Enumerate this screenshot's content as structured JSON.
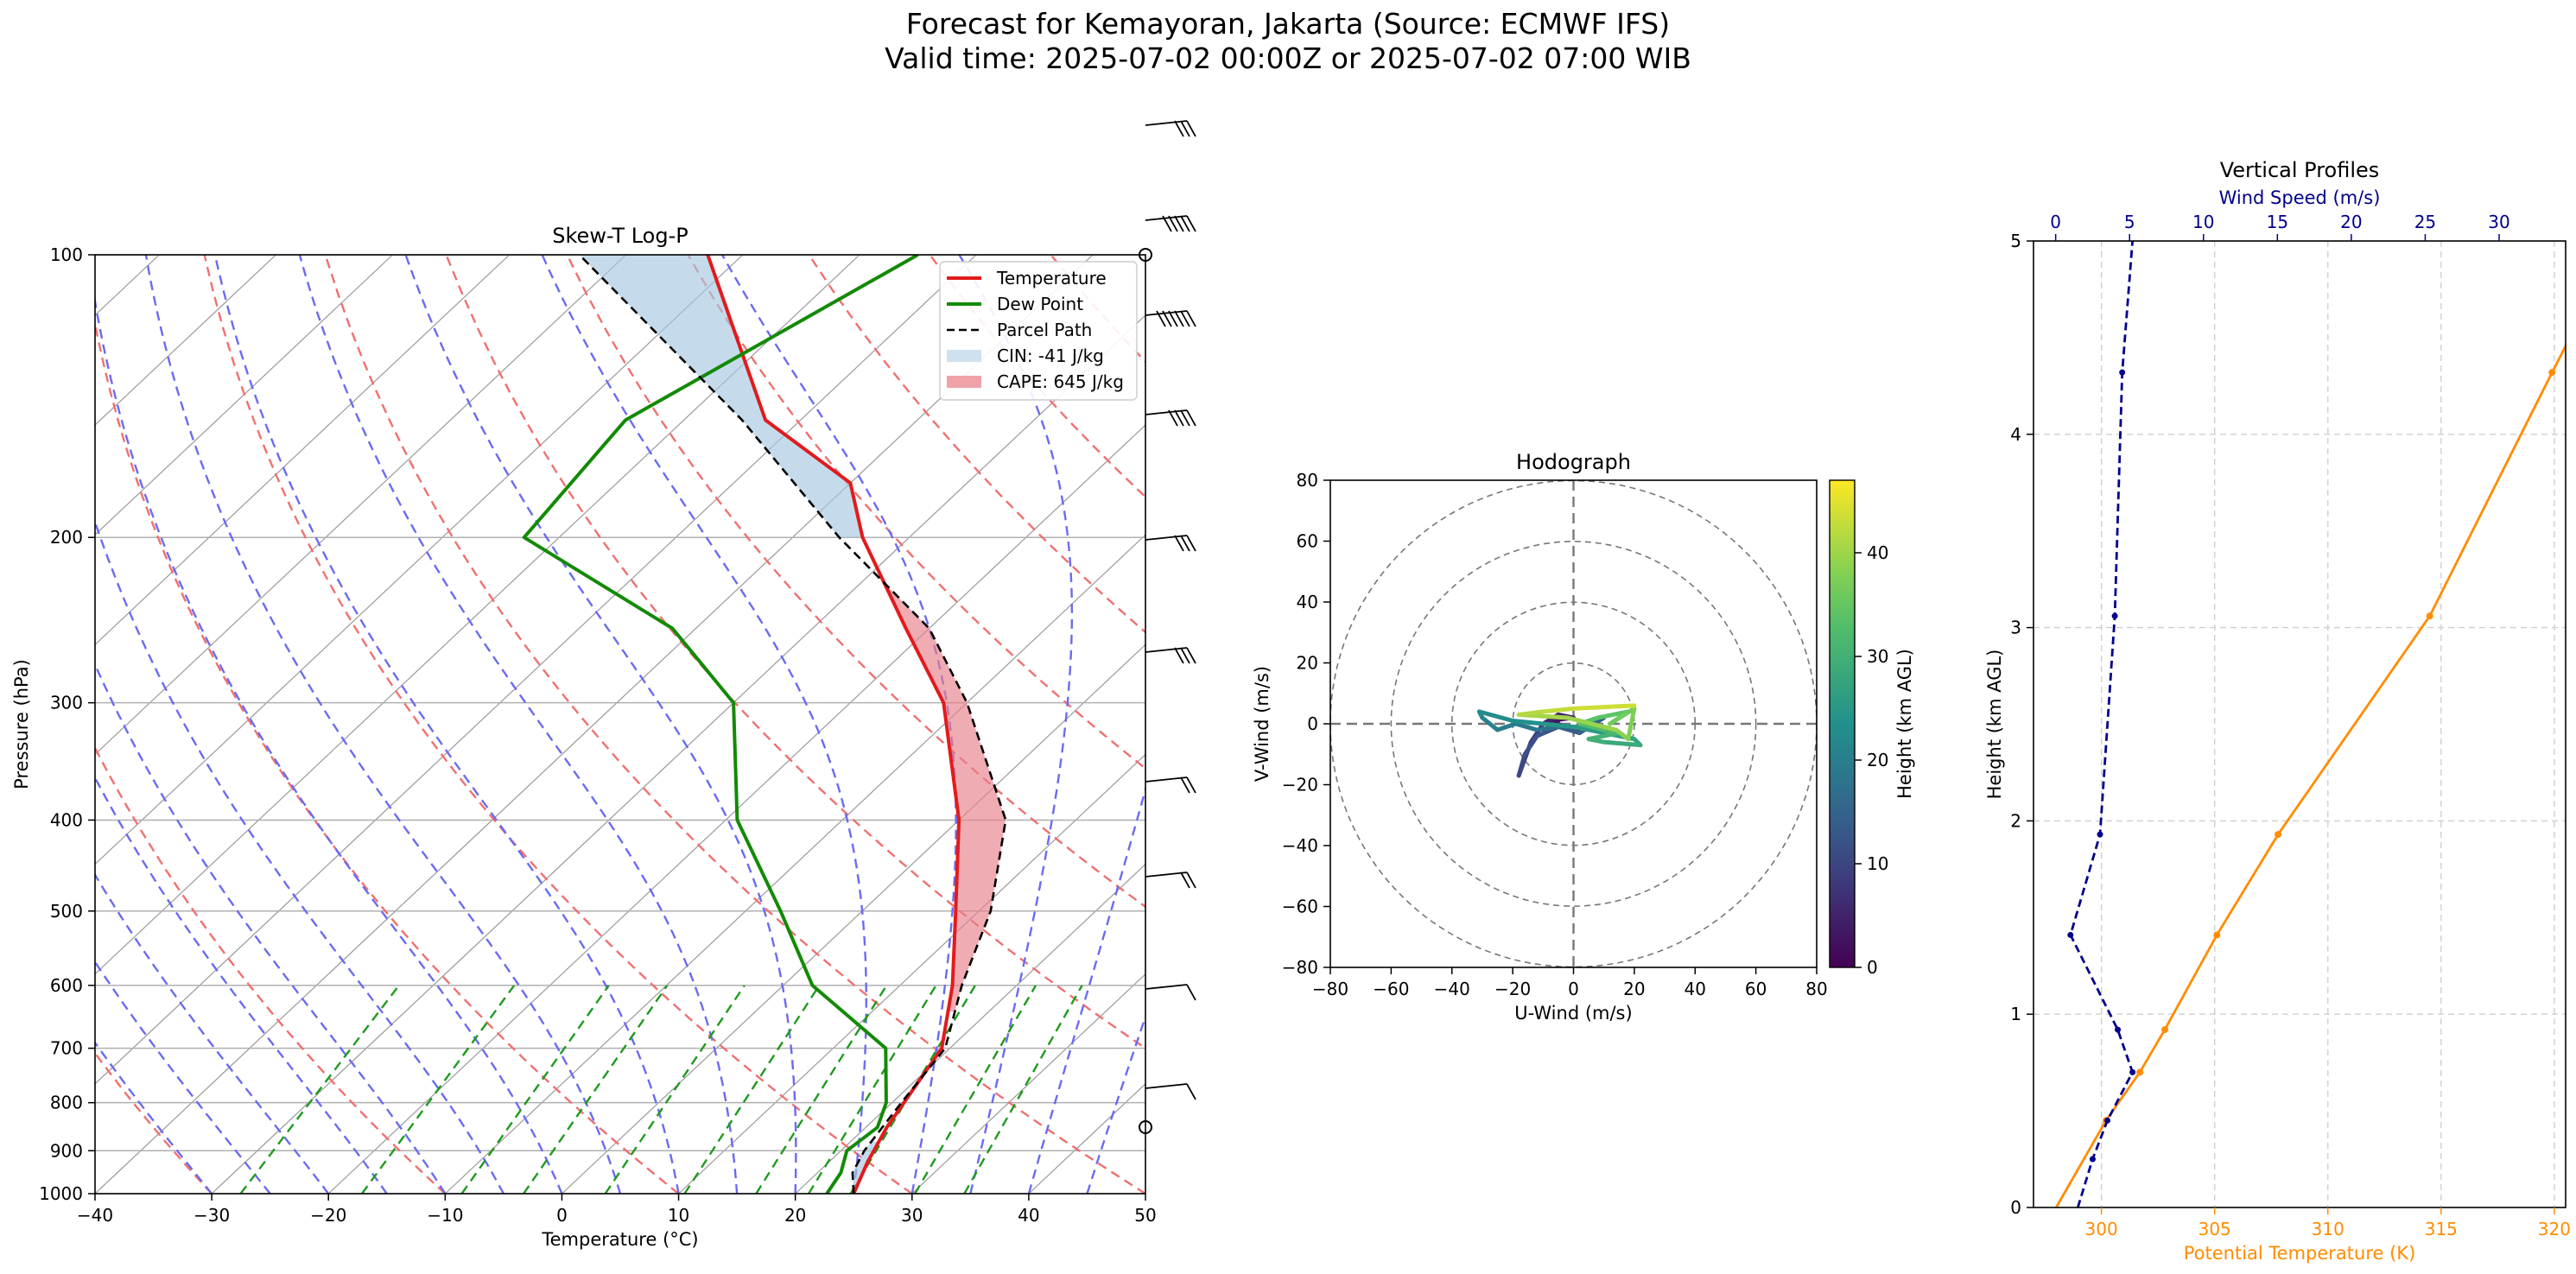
{
  "suptitle": {
    "line1": "Forecast for Kemayoran, Jakarta (Source: ECMWF IFS)",
    "line2": "Valid time: 2025-07-02 00:00Z or 2025-07-02 07:00 WIB"
  },
  "chart_data": [
    {
      "type": "line",
      "title": "Skew-T Log-P",
      "xlabel": "Temperature (°C)",
      "ylabel": "Pressure (hPa)",
      "xlim": [
        -40,
        50
      ],
      "ylim": [
        1000,
        100
      ],
      "log_y": true,
      "x_ticks": [
        -40,
        -30,
        -20,
        -10,
        0,
        10,
        20,
        30,
        40,
        50
      ],
      "y_ticks": [
        100,
        200,
        300,
        400,
        500,
        600,
        700,
        800,
        900,
        1000
      ],
      "legend": "top-right",
      "series": [
        {
          "name": "Temperature",
          "color": "#e31a1c",
          "points": [
            [
              1000,
              25
            ],
            [
              925,
              23.3
            ],
            [
              850,
              21.8
            ],
            [
              700,
              19.3
            ],
            [
              600,
              14.5
            ],
            [
              500,
              8
            ],
            [
              400,
              0
            ],
            [
              300,
              -12
            ],
            [
              250,
              -22
            ],
            [
              200,
              -34
            ],
            [
              175,
              -40
            ],
            [
              150,
              -53
            ],
            [
              100,
              -73
            ]
          ]
        },
        {
          "name": "Dew Point",
          "color": "#138a07",
          "points": [
            [
              1000,
              22.7
            ],
            [
              950,
              22
            ],
            [
              900,
              20.5
            ],
            [
              850,
              21
            ],
            [
              800,
              19.5
            ],
            [
              700,
              14.5
            ],
            [
              600,
              2.5
            ],
            [
              500,
              -7
            ],
            [
              400,
              -19
            ],
            [
              300,
              -30
            ],
            [
              250,
              -42
            ],
            [
              200,
              -63
            ],
            [
              150,
              -65
            ],
            [
              100,
              -55
            ]
          ]
        },
        {
          "name": "Parcel Path",
          "color": "#000000",
          "dash": true,
          "points": [
            [
              1000,
              25
            ],
            [
              950,
              23
            ],
            [
              900,
              22
            ],
            [
              800,
              20.8
            ],
            [
              700,
              19.6
            ],
            [
              600,
              15.3
            ],
            [
              500,
              11
            ],
            [
              400,
              4
            ],
            [
              300,
              -10
            ],
            [
              250,
              -20
            ],
            [
              200,
              -36
            ],
            [
              150,
              -55
            ],
            [
              100,
              -84
            ]
          ]
        }
      ],
      "shaded": [
        {
          "name": "CIN: -41 J/kg",
          "color": "#a6c8e2"
        },
        {
          "name": "CAPE: 645 J/kg",
          "color": "#e8808a"
        }
      ]
    },
    {
      "type": "line",
      "title": "Hodograph",
      "xlabel": "U-Wind (m/s)",
      "ylabel": "V-Wind (m/s)",
      "xlim": [
        -80,
        80
      ],
      "ylim": [
        -80,
        80
      ],
      "ticks": [
        -80,
        -60,
        -40,
        -20,
        0,
        20,
        40,
        60,
        80
      ],
      "colorbar": {
        "label": "Height (km AGL)",
        "ticks": [
          0,
          10,
          20,
          30,
          40
        ],
        "range": [
          0,
          47
        ]
      },
      "points": [
        [
          2,
          -2,
          0
        ],
        [
          -6,
          0,
          1
        ],
        [
          -4,
          2,
          2
        ],
        [
          -8,
          1,
          3
        ],
        [
          0,
          2,
          4
        ],
        [
          -5,
          3,
          5
        ],
        [
          -10,
          0,
          6
        ],
        [
          -12,
          -3,
          8
        ],
        [
          -14,
          -6,
          9
        ],
        [
          -18,
          -17,
          10
        ],
        [
          -16,
          -10,
          11
        ],
        [
          -12,
          -4,
          12
        ],
        [
          -5,
          -1,
          13
        ],
        [
          2,
          -3,
          14
        ],
        [
          10,
          2,
          15
        ],
        [
          3,
          -1,
          16
        ],
        [
          -5,
          -1,
          17
        ],
        [
          -12,
          -2,
          18
        ],
        [
          -19,
          0,
          19
        ],
        [
          -25,
          -2,
          20
        ],
        [
          -30,
          2,
          21
        ],
        [
          -31,
          4,
          22
        ],
        [
          -20,
          1,
          23
        ],
        [
          -10,
          0,
          24
        ],
        [
          0,
          -1,
          25
        ],
        [
          10,
          -3,
          26
        ],
        [
          20,
          -5,
          27
        ],
        [
          22,
          -7,
          28
        ],
        [
          10,
          -6,
          29
        ],
        [
          5,
          -5,
          30
        ],
        [
          15,
          -3,
          31
        ],
        [
          10,
          -2,
          32
        ],
        [
          2,
          0,
          33
        ],
        [
          8,
          2,
          34
        ],
        [
          18,
          4,
          35
        ],
        [
          12,
          0,
          36
        ],
        [
          20,
          5,
          37
        ],
        [
          18,
          -5,
          38
        ],
        [
          14,
          -2,
          39
        ],
        [
          -2,
          2,
          40
        ],
        [
          -18,
          3,
          41
        ],
        [
          -10,
          4,
          42
        ],
        [
          0,
          5,
          43
        ],
        [
          20,
          6,
          44
        ]
      ]
    },
    {
      "type": "line",
      "title": "Vertical Profiles",
      "ylabel": "Height (km AGL)",
      "ylim": [
        0,
        5
      ],
      "y_ticks": [
        0,
        1,
        2,
        3,
        4,
        5
      ],
      "grid": true,
      "series": [
        {
          "name": "Potential Temperature (K)",
          "axis": "bottom",
          "color": "#ff8c00",
          "xlim": [
            297,
            320.5
          ],
          "x_ticks": [
            300,
            305,
            310,
            315,
            320
          ],
          "points": [
            [
              298,
              0
            ],
            [
              300.2,
              0.45
            ],
            [
              301.7,
              0.7
            ],
            [
              302.8,
              0.92
            ],
            [
              305.1,
              1.41
            ],
            [
              307.8,
              1.93
            ],
            [
              314.5,
              3.06
            ],
            [
              319.9,
              4.32
            ],
            [
              322,
              4.8
            ]
          ]
        },
        {
          "name": "Wind Speed (m/s)",
          "axis": "top",
          "color": "#00008b",
          "xlim": [
            -1.5,
            34.5
          ],
          "x_ticks": [
            0,
            5,
            10,
            15,
            20,
            25,
            30
          ],
          "points": [
            [
              1.5,
              0
            ],
            [
              2.5,
              0.25
            ],
            [
              3.5,
              0.45
            ],
            [
              5.2,
              0.7
            ],
            [
              4.2,
              0.92
            ],
            [
              1,
              1.41
            ],
            [
              3,
              1.93
            ],
            [
              4,
              3.06
            ],
            [
              4.5,
              4.32
            ],
            [
              5.2,
              5
            ]
          ]
        }
      ]
    }
  ]
}
